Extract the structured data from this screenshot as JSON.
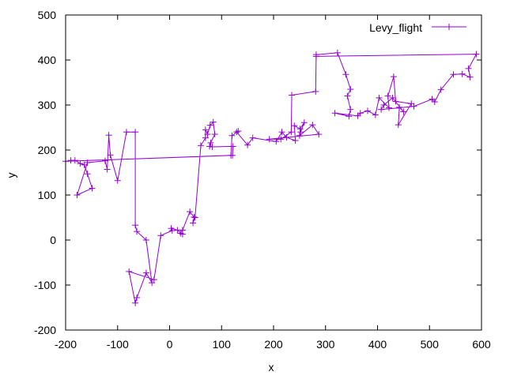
{
  "chart_data": {
    "type": "line",
    "xlabel": "x",
    "ylabel": "y",
    "xlim": [
      -200,
      600
    ],
    "ylim": [
      -200,
      500
    ],
    "x_ticks": [
      -200,
      -100,
      0,
      100,
      200,
      300,
      400,
      500,
      600
    ],
    "y_ticks": [
      -200,
      -100,
      0,
      100,
      200,
      300,
      400,
      500
    ],
    "x_tick_labels": [
      "-200",
      "-100",
      "0",
      "100",
      "200",
      "300",
      "400",
      "500",
      "600"
    ],
    "y_tick_labels": [
      "-200",
      "-100",
      "0",
      "100",
      "200",
      "300",
      "400",
      "500"
    ],
    "grid": false,
    "legend": "top-right",
    "series": [
      {
        "name": "Levy_flight",
        "color": "#9400d3",
        "marker": "plus",
        "points": [
          [
            -190,
            177
          ],
          [
            -182,
            177
          ],
          [
            -172,
            170
          ],
          [
            -164,
            167
          ],
          [
            -158,
            147
          ],
          [
            -149,
            115
          ],
          [
            -178,
            100
          ],
          [
            -158,
            172
          ],
          [
            -124,
            176
          ],
          [
            -120,
            157
          ],
          [
            -117,
            233
          ],
          [
            -114,
            189
          ],
          [
            -100,
            132
          ],
          [
            -83,
            240
          ],
          [
            -66,
            240
          ],
          [
            -66,
            33
          ],
          [
            -63,
            19
          ],
          [
            -45,
            0
          ],
          [
            -34,
            -95
          ],
          [
            -45,
            -73
          ],
          [
            -63,
            -128
          ],
          [
            -66,
            -140
          ],
          [
            -78,
            -70
          ],
          [
            -30,
            -88
          ],
          [
            -17,
            10
          ],
          [
            5,
            21
          ],
          [
            3,
            26
          ],
          [
            15,
            22
          ],
          [
            25,
            13
          ],
          [
            21,
            15
          ],
          [
            25,
            22
          ],
          [
            39,
            63
          ],
          [
            47,
            51
          ],
          [
            45,
            38
          ],
          [
            49,
            50
          ],
          [
            60,
            210
          ],
          [
            69,
            227
          ],
          [
            69,
            245
          ],
          [
            73,
            235
          ],
          [
            78,
            255
          ],
          [
            84,
            262
          ],
          [
            87,
            235
          ],
          [
            79,
            216
          ],
          [
            77,
            208
          ],
          [
            82,
            207
          ],
          [
            122,
            208
          ],
          [
            121,
            188
          ],
          [
            -200,
            175
          ],
          [
            118,
            188
          ],
          [
            120,
            232
          ],
          [
            132,
            242
          ],
          [
            129,
            240
          ],
          [
            150,
            211
          ],
          [
            160,
            227
          ],
          [
            205,
            219
          ],
          [
            216,
            240
          ],
          [
            225,
            228
          ],
          [
            242,
            221
          ],
          [
            240,
            254
          ],
          [
            251,
            247
          ],
          [
            259,
            261
          ],
          [
            252,
            240
          ],
          [
            250,
            232
          ],
          [
            275,
            256
          ],
          [
            287,
            235
          ],
          [
            192,
            224
          ],
          [
            214,
            224
          ],
          [
            234,
            240
          ],
          [
            235,
            322
          ],
          [
            281,
            330
          ],
          [
            282,
            412
          ],
          [
            323,
            416
          ],
          [
            339,
            368
          ],
          [
            348,
            335
          ],
          [
            342,
            320
          ],
          [
            348,
            290
          ],
          [
            345,
            275
          ],
          [
            318,
            282
          ],
          [
            362,
            276
          ],
          [
            367,
            282
          ],
          [
            381,
            287
          ],
          [
            396,
            278
          ],
          [
            403,
            316
          ],
          [
            422,
            294
          ],
          [
            420,
            320
          ],
          [
            431,
            363
          ],
          [
            435,
            308
          ],
          [
            465,
            303
          ],
          [
            440,
            256
          ],
          [
            442,
            295
          ],
          [
            450,
            285
          ],
          [
            429,
            316
          ],
          [
            412,
            300
          ],
          [
            407,
            290
          ],
          [
            470,
            297
          ],
          [
            505,
            313
          ],
          [
            510,
            307
          ],
          [
            522,
            334
          ],
          [
            546,
            368
          ],
          [
            563,
            369
          ],
          [
            578,
            362
          ],
          [
            575,
            381
          ],
          [
            590,
            413
          ],
          [
            282,
            408
          ]
        ]
      }
    ]
  }
}
